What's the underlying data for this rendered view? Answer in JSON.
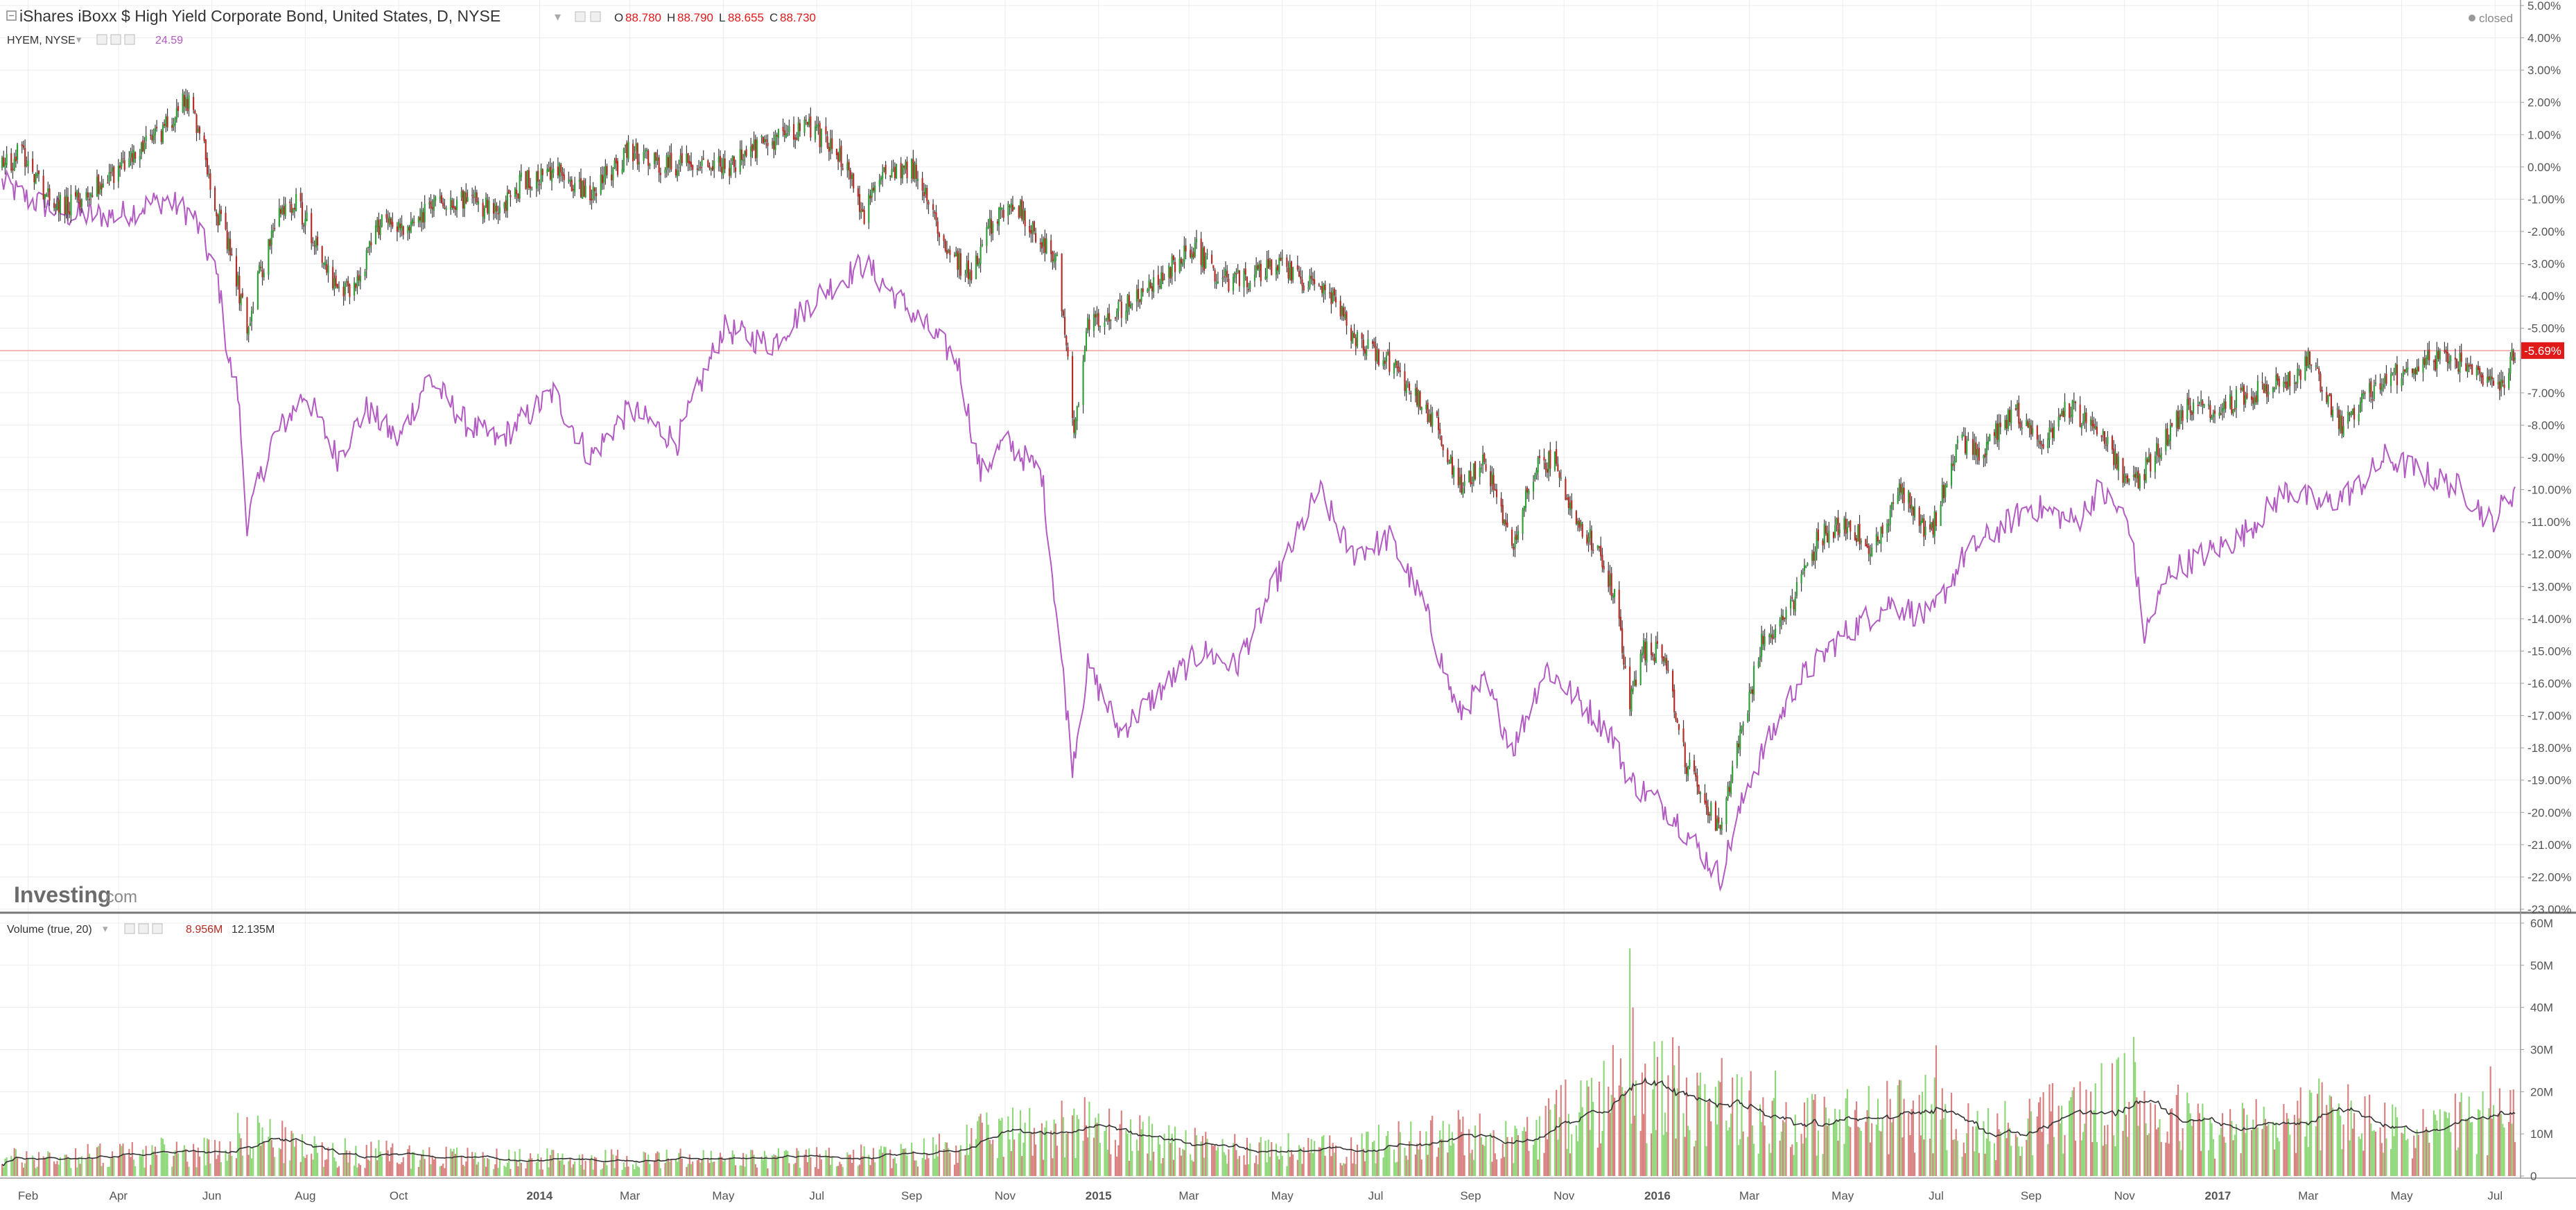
{
  "header": {
    "title": "iShares iBoxx $ High Yield Corporate Bond, United States, D, NYSE",
    "ohlc": [
      {
        "label": "O",
        "value": "88.780"
      },
      {
        "label": "H",
        "value": "88.790"
      },
      {
        "label": "L",
        "value": "88.655"
      },
      {
        "label": "C",
        "value": "88.730"
      }
    ],
    "compare_symbol": "HYEM, NYSE",
    "compare_value": "24.59",
    "market_status": "closed",
    "volume_study": "Volume (true, 20)",
    "volume_value": "8.956M",
    "volume_ma_value": "12.135M",
    "watermark_brand": "Investing",
    "watermark_suffix": ".com",
    "current_change_label": "-5.69%"
  },
  "colors": {
    "up": "#2e9e36",
    "down": "#b52a22",
    "compare_line": "#b25bc2",
    "volume_up": "#8fd87a",
    "volume_down": "#d98080",
    "volume_ma": "#333333",
    "price_line": "#f4b2b2",
    "price_badge": "#e01919",
    "header_red": "#e01919"
  },
  "chart_data": {
    "type": "line",
    "subtype": "candlestick-percent-comparison",
    "series": [
      {
        "name": "iShares iBoxx $ High Yield Corporate Bond",
        "style": "candlestick",
        "color": "up:#2e9e36/down:#b52a22"
      },
      {
        "name": "HYEM, NYSE",
        "style": "line",
        "color": "#b25bc2"
      }
    ],
    "price_anchors": [
      [
        "2013-01-15",
        0.0
      ],
      [
        "2013-01-28",
        0.5
      ],
      [
        "2013-02-15",
        -1.0
      ],
      [
        "2013-03-01",
        -1.2
      ],
      [
        "2013-03-20",
        -0.5
      ],
      [
        "2013-04-10",
        0.3
      ],
      [
        "2013-05-01",
        1.2
      ],
      [
        "2013-05-15",
        2.2
      ],
      [
        "2013-05-25",
        1.0
      ],
      [
        "2013-06-05",
        -1.5
      ],
      [
        "2013-06-15",
        -3.0
      ],
      [
        "2013-06-24",
        -5.0
      ],
      [
        "2013-07-01",
        -3.5
      ],
      [
        "2013-07-15",
        -1.5
      ],
      [
        "2013-07-25",
        -1.0
      ],
      [
        "2013-08-10",
        -2.5
      ],
      [
        "2013-08-22",
        -4.0
      ],
      [
        "2013-09-05",
        -3.5
      ],
      [
        "2013-09-20",
        -1.5
      ],
      [
        "2013-10-08",
        -2.0
      ],
      [
        "2013-10-25",
        -1.0
      ],
      [
        "2013-11-15",
        -1.0
      ],
      [
        "2013-12-05",
        -1.5
      ],
      [
        "2013-12-20",
        -0.5
      ],
      [
        "2014-01-15",
        -0.2
      ],
      [
        "2014-02-03",
        -0.8
      ],
      [
        "2014-03-01",
        0.5
      ],
      [
        "2014-03-20",
        0.0
      ],
      [
        "2014-04-15",
        0.2
      ],
      [
        "2014-05-05",
        0.0
      ],
      [
        "2014-05-30",
        0.8
      ],
      [
        "2014-06-24",
        1.3
      ],
      [
        "2014-07-15",
        0.5
      ],
      [
        "2014-08-01",
        -1.5
      ],
      [
        "2014-08-15",
        0.0
      ],
      [
        "2014-09-01",
        0.0
      ],
      [
        "2014-09-25",
        -2.5
      ],
      [
        "2014-10-10",
        -3.5
      ],
      [
        "2014-10-20",
        -2.0
      ],
      [
        "2014-11-05",
        -1.0
      ],
      [
        "2014-11-20",
        -2.0
      ],
      [
        "2014-12-05",
        -3.0
      ],
      [
        "2014-12-16",
        -8.0
      ],
      [
        "2014-12-25",
        -5.0
      ],
      [
        "2015-01-10",
        -4.5
      ],
      [
        "2015-01-30",
        -4.0
      ],
      [
        "2015-02-20",
        -3.0
      ],
      [
        "2015-03-05",
        -2.5
      ],
      [
        "2015-03-20",
        -3.5
      ],
      [
        "2015-04-10",
        -3.5
      ],
      [
        "2015-04-25",
        -3.0
      ],
      [
        "2015-05-15",
        -3.5
      ],
      [
        "2015-06-01",
        -4.0
      ],
      [
        "2015-06-20",
        -5.5
      ],
      [
        "2015-07-10",
        -6.0
      ],
      [
        "2015-07-25",
        -7.0
      ],
      [
        "2015-08-10",
        -8.0
      ],
      [
        "2015-08-24",
        -10.0
      ],
      [
        "2015-09-10",
        -9.0
      ],
      [
        "2015-09-29",
        -12.0
      ],
      [
        "2015-10-10",
        -9.5
      ],
      [
        "2015-10-25",
        -9.0
      ],
      [
        "2015-11-10",
        -11.0
      ],
      [
        "2015-11-25",
        -12.0
      ],
      [
        "2015-12-05",
        -13.5
      ],
      [
        "2015-12-14",
        -16.5
      ],
      [
        "2015-12-22",
        -15.0
      ],
      [
        "2016-01-05",
        -15.0
      ],
      [
        "2016-01-20",
        -18.5
      ],
      [
        "2016-02-11",
        -20.5
      ],
      [
        "2016-02-25",
        -17.5
      ],
      [
        "2016-03-10",
        -14.5
      ],
      [
        "2016-03-25",
        -14.0
      ],
      [
        "2016-04-15",
        -11.5
      ],
      [
        "2016-05-05",
        -11.0
      ],
      [
        "2016-05-20",
        -12.0
      ],
      [
        "2016-06-08",
        -10.0
      ],
      [
        "2016-06-27",
        -11.5
      ],
      [
        "2016-07-15",
        -8.5
      ],
      [
        "2016-07-30",
        -9.0
      ],
      [
        "2016-08-20",
        -7.5
      ],
      [
        "2016-09-09",
        -8.5
      ],
      [
        "2016-09-25",
        -7.5
      ],
      [
        "2016-10-15",
        -8.0
      ],
      [
        "2016-11-04",
        -10.0
      ],
      [
        "2016-11-20",
        -9.0
      ],
      [
        "2016-12-10",
        -7.5
      ],
      [
        "2016-12-30",
        -7.5
      ],
      [
        "2017-01-25",
        -7.0
      ],
      [
        "2017-02-20",
        -6.5
      ],
      [
        "2017-03-01",
        -6.0
      ],
      [
        "2017-03-22",
        -8.0
      ],
      [
        "2017-04-10",
        -7.0
      ],
      [
        "2017-04-25",
        -6.5
      ],
      [
        "2017-05-15",
        -6.0
      ],
      [
        "2017-06-05",
        -6.0
      ],
      [
        "2017-06-20",
        -6.5
      ],
      [
        "2017-07-05",
        -6.8
      ],
      [
        "2017-07-14",
        -5.7
      ]
    ],
    "compare_anchors": [
      [
        "2013-01-15",
        -0.5
      ],
      [
        "2013-02-01",
        -1.0
      ],
      [
        "2013-03-01",
        -1.5
      ],
      [
        "2013-04-01",
        -1.5
      ],
      [
        "2013-05-01",
        -1.0
      ],
      [
        "2013-05-20",
        -1.5
      ],
      [
        "2013-06-05",
        -3.5
      ],
      [
        "2013-06-12",
        -6.0
      ],
      [
        "2013-06-18",
        -7.0
      ],
      [
        "2013-06-24",
        -11.0
      ],
      [
        "2013-07-10",
        -8.5
      ],
      [
        "2013-08-01",
        -7.0
      ],
      [
        "2013-08-22",
        -9.0
      ],
      [
        "2013-09-10",
        -7.5
      ],
      [
        "2013-10-01",
        -8.5
      ],
      [
        "2013-10-20",
        -6.5
      ],
      [
        "2013-11-15",
        -8.0
      ],
      [
        "2013-12-05",
        -8.5
      ],
      [
        "2014-01-10",
        -7.0
      ],
      [
        "2014-02-03",
        -9.0
      ],
      [
        "2014-03-01",
        -7.5
      ],
      [
        "2014-04-01",
        -8.5
      ],
      [
        "2014-05-01",
        -5.0
      ],
      [
        "2014-06-01",
        -5.5
      ],
      [
        "2014-07-01",
        -4.0
      ],
      [
        "2014-08-01",
        -3.0
      ],
      [
        "2014-09-01",
        -4.5
      ],
      [
        "2014-10-01",
        -6.0
      ],
      [
        "2014-10-16",
        -9.5
      ],
      [
        "2014-11-01",
        -8.5
      ],
      [
        "2014-11-25",
        -9.5
      ],
      [
        "2014-12-15",
        -18.5
      ],
      [
        "2014-12-25",
        -15.5
      ],
      [
        "2015-01-15",
        -17.5
      ],
      [
        "2015-02-15",
        -16.0
      ],
      [
        "2015-03-10",
        -15.0
      ],
      [
        "2015-04-01",
        -15.5
      ],
      [
        "2015-05-05",
        -12.0
      ],
      [
        "2015-05-25",
        -10.0
      ],
      [
        "2015-06-15",
        -12.0
      ],
      [
        "2015-07-10",
        -11.5
      ],
      [
        "2015-08-01",
        -13.5
      ],
      [
        "2015-08-24",
        -17.0
      ],
      [
        "2015-09-10",
        -16.0
      ],
      [
        "2015-09-29",
        -18.0
      ],
      [
        "2015-10-20",
        -15.5
      ],
      [
        "2015-11-10",
        -16.5
      ],
      [
        "2015-12-01",
        -17.5
      ],
      [
        "2015-12-14",
        -19.0
      ],
      [
        "2016-01-10",
        -20.0
      ],
      [
        "2016-02-11",
        -22.0
      ],
      [
        "2016-03-01",
        -19.0
      ],
      [
        "2016-04-01",
        -16.0
      ],
      [
        "2016-05-01",
        -14.5
      ],
      [
        "2016-06-01",
        -13.5
      ],
      [
        "2016-06-27",
        -14.0
      ],
      [
        "2016-07-20",
        -12.0
      ],
      [
        "2016-09-01",
        -10.5
      ],
      [
        "2016-10-01",
        -11.0
      ],
      [
        "2016-10-15",
        -10.0
      ],
      [
        "2016-11-04",
        -11.0
      ],
      [
        "2016-11-14",
        -14.5
      ],
      [
        "2016-12-01",
        -12.5
      ],
      [
        "2017-01-15",
        -11.5
      ],
      [
        "2017-02-15",
        -10.0
      ],
      [
        "2017-03-10",
        -10.5
      ],
      [
        "2017-04-01",
        -10.0
      ],
      [
        "2017-04-20",
        -9.0
      ],
      [
        "2017-05-15",
        -9.5
      ],
      [
        "2017-06-10",
        -10.0
      ],
      [
        "2017-06-28",
        -11.0
      ],
      [
        "2017-07-14",
        -10.0
      ]
    ],
    "candle_range_pct": 0.7,
    "volume_anchors": [
      [
        "2013-01-15",
        4
      ],
      [
        "2013-06-01",
        6
      ],
      [
        "2013-06-24",
        11
      ],
      [
        "2013-08-01",
        6
      ],
      [
        "2013-12-01",
        4
      ],
      [
        "2014-06-01",
        4
      ],
      [
        "2014-09-01",
        5
      ],
      [
        "2014-10-16",
        9
      ],
      [
        "2014-12-16",
        12
      ],
      [
        "2015-03-01",
        7
      ],
      [
        "2015-06-01",
        6
      ],
      [
        "2015-08-24",
        10
      ],
      [
        "2015-10-01",
        8
      ],
      [
        "2015-12-14",
        22
      ],
      [
        "2016-02-11",
        18
      ],
      [
        "2016-04-01",
        12
      ],
      [
        "2016-06-27",
        15
      ],
      [
        "2016-08-01",
        10
      ],
      [
        "2016-11-04",
        18
      ],
      [
        "2017-01-01",
        10
      ],
      [
        "2017-03-15",
        15
      ],
      [
        "2017-05-01",
        10
      ],
      [
        "2017-07-14",
        14
      ]
    ],
    "volume_spikes": [
      [
        "2015-12-14",
        54
      ],
      [
        "2015-12-16",
        40
      ],
      [
        "2016-07-01",
        31
      ],
      [
        "2016-11-07",
        33
      ],
      [
        "2017-06-28",
        26
      ],
      [
        "2016-02-12",
        28
      ],
      [
        "2016-03-18",
        25
      ],
      [
        "2014-12-16",
        16
      ],
      [
        "2013-06-24",
        14
      ]
    ],
    "x_range": [
      "2013-01-15",
      "2017-07-14"
    ],
    "y_axis_price": {
      "min": -23,
      "max": 5,
      "step": 1,
      "unit": "%"
    },
    "y_axis_volume": {
      "min": 0,
      "max": 60,
      "step": 10,
      "unit": "M"
    },
    "x_ticks": [
      {
        "date": "2013-02-01",
        "label": "Feb"
      },
      {
        "date": "2013-04-01",
        "label": "Apr"
      },
      {
        "date": "2013-06-01",
        "label": "Jun"
      },
      {
        "date": "2013-08-01",
        "label": "Aug"
      },
      {
        "date": "2013-10-01",
        "label": "Oct"
      },
      {
        "date": "2014-01-01",
        "label": "2014"
      },
      {
        "date": "2014-03-01",
        "label": "Mar"
      },
      {
        "date": "2014-05-01",
        "label": "May"
      },
      {
        "date": "2014-07-01",
        "label": "Jul"
      },
      {
        "date": "2014-09-01",
        "label": "Sep"
      },
      {
        "date": "2014-11-01",
        "label": "Nov"
      },
      {
        "date": "2015-01-01",
        "label": "2015"
      },
      {
        "date": "2015-03-01",
        "label": "Mar"
      },
      {
        "date": "2015-05-01",
        "label": "May"
      },
      {
        "date": "2015-07-01",
        "label": "Jul"
      },
      {
        "date": "2015-09-01",
        "label": "Sep"
      },
      {
        "date": "2015-11-01",
        "label": "Nov"
      },
      {
        "date": "2016-01-01",
        "label": "2016"
      },
      {
        "date": "2016-03-01",
        "label": "Mar"
      },
      {
        "date": "2016-05-01",
        "label": "May"
      },
      {
        "date": "2016-07-01",
        "label": "Jul"
      },
      {
        "date": "2016-09-01",
        "label": "Sep"
      },
      {
        "date": "2016-11-01",
        "label": "Nov"
      },
      {
        "date": "2017-01-01",
        "label": "2017"
      },
      {
        "date": "2017-03-01",
        "label": "Mar"
      },
      {
        "date": "2017-05-01",
        "label": "May"
      },
      {
        "date": "2017-07-01",
        "label": "Jul"
      }
    ],
    "current_value_pct": -5.69,
    "grid": true,
    "legend": "top-left"
  }
}
